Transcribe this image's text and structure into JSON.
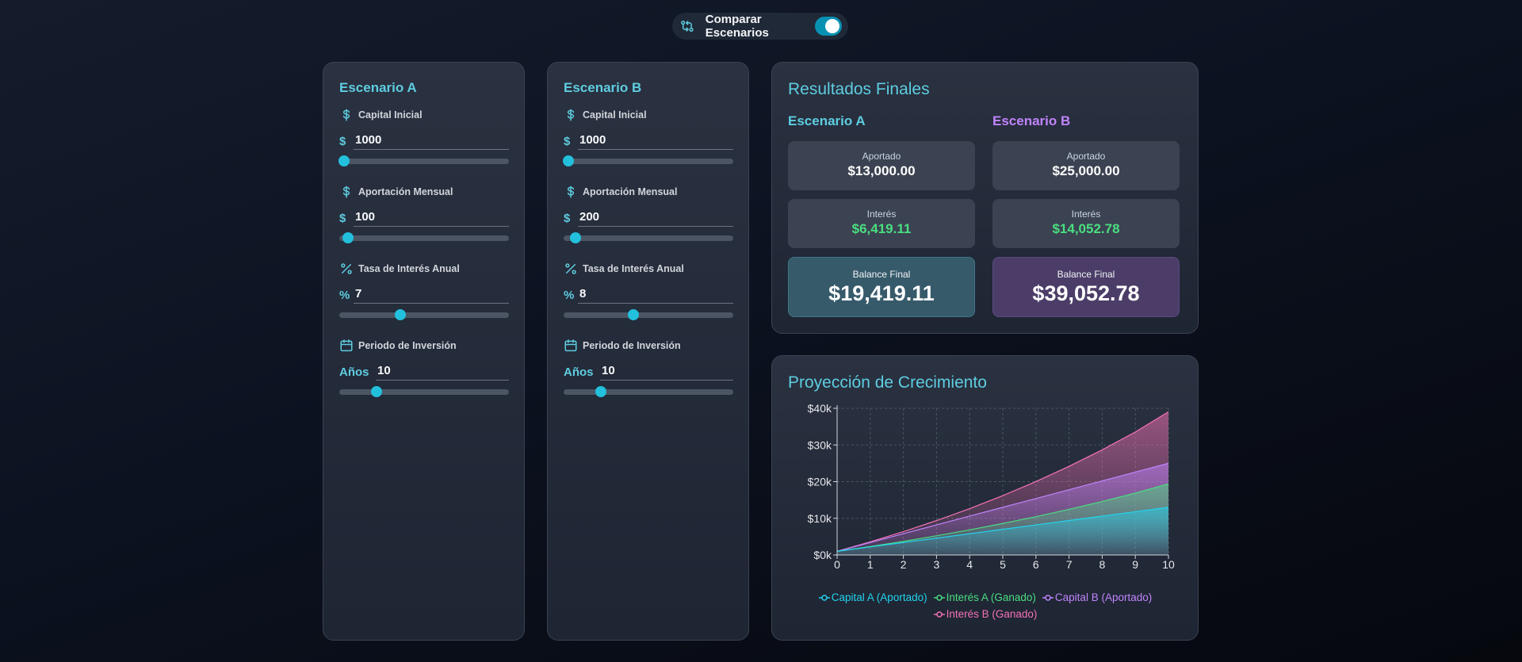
{
  "toggle": {
    "label": "Comparar Escenarios",
    "on": true,
    "accent": "#0891b2"
  },
  "scenarios": [
    {
      "title": "Escenario A",
      "fields": [
        {
          "icon": "dollar-icon",
          "label": "Capital Inicial",
          "prefix": "$",
          "value": "1000",
          "slider_fraction": 0.03
        },
        {
          "icon": "dollar-icon",
          "label": "Aportación Mensual",
          "prefix": "$",
          "value": "100",
          "slider_fraction": 0.05
        },
        {
          "icon": "percent-icon",
          "label": "Tasa de Interés Anual",
          "prefix": "%",
          "value": "7",
          "slider_fraction": 0.36
        },
        {
          "icon": "calendar-icon",
          "label": "Periodo de Inversión",
          "prefix": "Años",
          "value": "10",
          "slider_fraction": 0.22
        }
      ]
    },
    {
      "title": "Escenario B",
      "fields": [
        {
          "icon": "dollar-icon",
          "label": "Capital Inicial",
          "prefix": "$",
          "value": "1000",
          "slider_fraction": 0.03
        },
        {
          "icon": "dollar-icon",
          "label": "Aportación Mensual",
          "prefix": "$",
          "value": "200",
          "slider_fraction": 0.07
        },
        {
          "icon": "percent-icon",
          "label": "Tasa de Interés Anual",
          "prefix": "%",
          "value": "8",
          "slider_fraction": 0.41
        },
        {
          "icon": "calendar-icon",
          "label": "Periodo de Inversión",
          "prefix": "Años",
          "value": "10",
          "slider_fraction": 0.22
        }
      ]
    }
  ],
  "results": {
    "title": "Resultados Finales",
    "a": {
      "title": "Escenario A",
      "color": "#5ecde0",
      "aportado_label": "Aportado",
      "aportado": "$13,000.00",
      "interes_label": "Interés",
      "interes": "$6,419.11",
      "final_label": "Balance Final",
      "final": "$19,419.11"
    },
    "b": {
      "title": "Escenario B",
      "color": "#c084fc",
      "aportado_label": "Aportado",
      "aportado": "$25,000.00",
      "interes_label": "Interés",
      "interes": "$14,052.78",
      "final_label": "Balance Final",
      "final": "$39,052.78"
    },
    "interest_color": "#4ade80"
  },
  "projection": {
    "title": "Proyección de Crecimiento",
    "chart_data": {
      "type": "area",
      "x": [
        0,
        1,
        2,
        3,
        4,
        5,
        6,
        7,
        8,
        9,
        10
      ],
      "ylim": [
        0,
        40000
      ],
      "xlim": [
        0,
        10
      ],
      "y_ticks": [
        0,
        10000,
        20000,
        30000,
        40000
      ],
      "y_tick_labels": [
        "$0k",
        "$10k",
        "$20k",
        "$30k",
        "$40k"
      ],
      "x_tick_labels": [
        "0",
        "1",
        "2",
        "3",
        "4",
        "5",
        "6",
        "7",
        "8",
        "9",
        "10"
      ],
      "grid": true,
      "legend_position": "bottom",
      "series": [
        {
          "name": "Capital A (Aportado)",
          "color": "#22d3ee",
          "values": [
            1000,
            2200,
            3400,
            4600,
            5800,
            7000,
            8200,
            9400,
            10600,
            11800,
            13000
          ]
        },
        {
          "name": "Interés A (Ganado)",
          "color": "#4ade80",
          "values": [
            1000,
            2314,
            3722,
            5233,
            6853,
            8589,
            10451,
            12447,
            14588,
            16883,
            19419
          ]
        },
        {
          "name": "Capital B (Aportado)",
          "color": "#c084fc",
          "values": [
            1000,
            3400,
            5800,
            8200,
            10600,
            13000,
            15400,
            17800,
            20200,
            22600,
            25000
          ]
        },
        {
          "name": "Interés B (Ganado)",
          "color": "#f472b6",
          "values": [
            1000,
            3573,
            6359,
            9377,
            12645,
            16185,
            20019,
            24170,
            28667,
            33538,
            39053
          ]
        }
      ]
    }
  }
}
